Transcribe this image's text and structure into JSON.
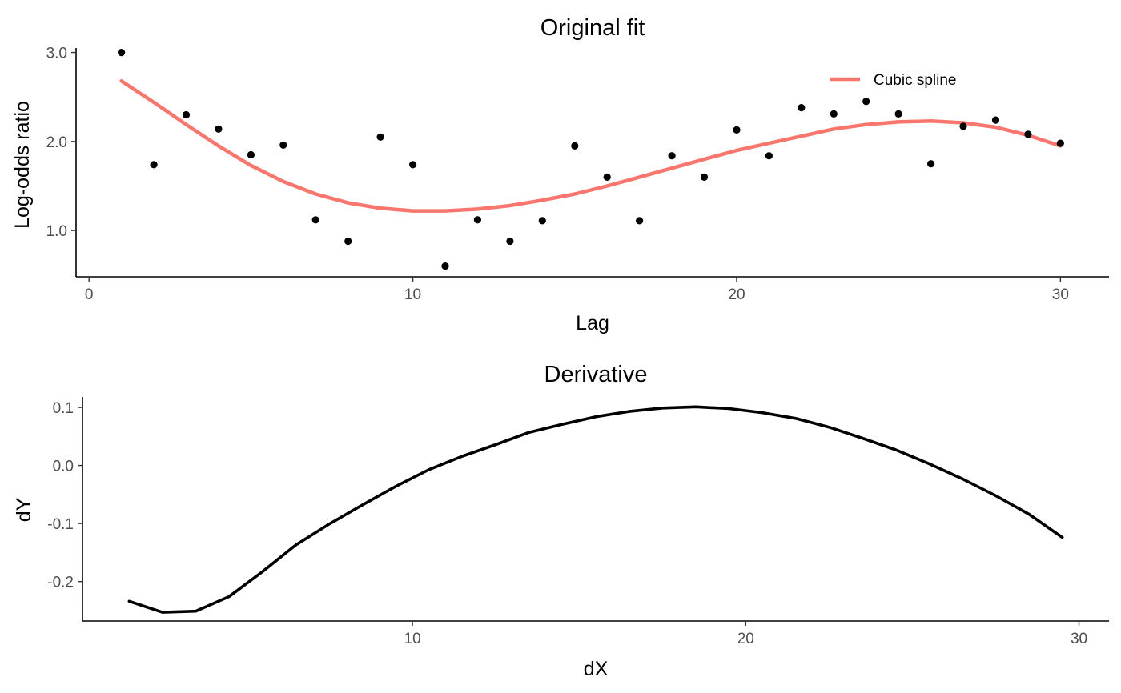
{
  "chart_data": [
    {
      "type": "scatter",
      "title": "Original fit",
      "xlabel": "Lag",
      "ylabel": "Log-odds ratio",
      "xlim": [
        -0.4,
        31.5
      ],
      "ylim": [
        0.48,
        3.05
      ],
      "xticks": [
        0,
        10,
        20,
        30
      ],
      "xtick_labels": [
        "0",
        "10",
        "20",
        "30"
      ],
      "yticks": [
        1.0,
        2.0,
        3.0
      ],
      "ytick_labels": [
        "1.0",
        "2.0",
        "3.0"
      ],
      "grid": false,
      "legend": {
        "position": "top-right",
        "entries": [
          "Cubic spline"
        ]
      },
      "points": {
        "x": [
          1,
          2,
          3,
          4,
          5,
          6,
          7,
          8,
          9,
          10,
          11,
          12,
          13,
          14,
          15,
          16,
          17,
          18,
          19,
          20,
          21,
          22,
          23,
          24,
          25,
          26,
          27,
          28,
          29,
          30
        ],
        "y": [
          3.0,
          1.74,
          2.3,
          2.14,
          1.85,
          1.96,
          1.12,
          0.88,
          2.05,
          1.74,
          0.6,
          1.12,
          0.88,
          1.11,
          1.95,
          1.6,
          1.11,
          1.84,
          1.6,
          2.13,
          1.84,
          2.38,
          2.31,
          2.45,
          2.31,
          1.75,
          2.17,
          2.24,
          2.08,
          1.98
        ],
        "color": "#000000"
      },
      "series": [
        {
          "name": "Cubic spline",
          "color": "#f8766d",
          "x": [
            1,
            2,
            3,
            4,
            5,
            6,
            7,
            8,
            9,
            10,
            11,
            12,
            13,
            14,
            15,
            16,
            17,
            18,
            19,
            20,
            21,
            22,
            23,
            24,
            25,
            26,
            27,
            28,
            29,
            30
          ],
          "y": [
            2.68,
            2.44,
            2.19,
            1.95,
            1.73,
            1.55,
            1.41,
            1.31,
            1.25,
            1.22,
            1.22,
            1.24,
            1.28,
            1.34,
            1.41,
            1.5,
            1.6,
            1.7,
            1.8,
            1.9,
            1.98,
            2.06,
            2.14,
            2.19,
            2.22,
            2.23,
            2.21,
            2.16,
            2.07,
            1.95
          ]
        }
      ]
    },
    {
      "type": "line",
      "title": "Derivative",
      "xlabel": "dX",
      "ylabel": "dY",
      "xlim": [
        0.1,
        30.9
      ],
      "ylim": [
        -0.268,
        0.118
      ],
      "xticks": [
        10,
        20,
        30
      ],
      "xtick_labels": [
        "10",
        "20",
        "30"
      ],
      "yticks": [
        -0.2,
        -0.1,
        0.0,
        0.1
      ],
      "ytick_labels": [
        "-0.2",
        "-0.1",
        "0.0",
        "0.1"
      ],
      "grid": false,
      "series": [
        {
          "color": "#000000",
          "x": [
            1.5,
            2.5,
            3.5,
            4.5,
            5.5,
            6.5,
            7.5,
            8.5,
            9.5,
            10.5,
            11.5,
            12.5,
            13.5,
            14.5,
            15.5,
            16.5,
            17.5,
            18.5,
            19.5,
            20.5,
            21.5,
            22.5,
            23.5,
            24.5,
            25.5,
            26.5,
            27.5,
            28.5,
            29.5
          ],
          "y": [
            -0.234,
            -0.253,
            -0.251,
            -0.226,
            -0.183,
            -0.137,
            -0.101,
            -0.068,
            -0.036,
            -0.007,
            0.016,
            0.036,
            0.057,
            0.071,
            0.084,
            0.093,
            0.099,
            0.101,
            0.098,
            0.091,
            0.081,
            0.066,
            0.047,
            0.027,
            0.003,
            -0.023,
            -0.052,
            -0.084,
            -0.124
          ]
        }
      ]
    }
  ]
}
